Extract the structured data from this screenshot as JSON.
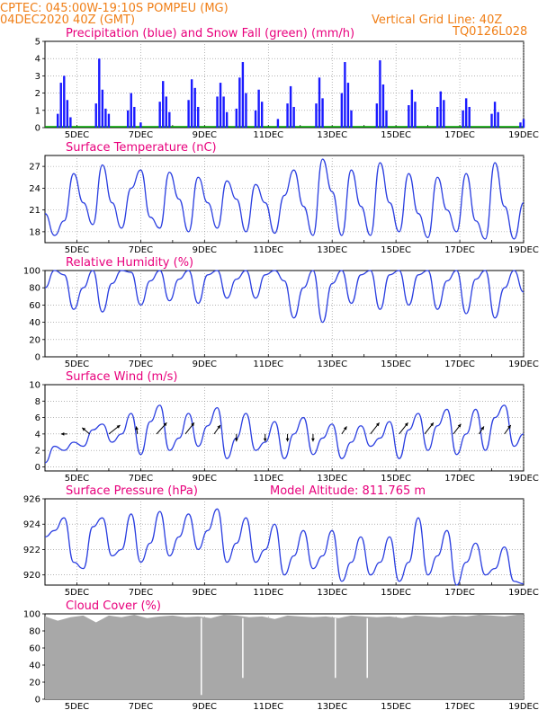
{
  "header": {
    "line1": "CPTEC:   045:00W-19:10S   POMPEU (MG)",
    "line2": "04DEC2020 40Z (GMT)",
    "right1": "Vertical Grid Line: 40Z",
    "right2": "TQ0126L028"
  },
  "x_axis": {
    "tick_labels": [
      "5DEC",
      "7DEC",
      "9DEC",
      "11DEC",
      "13DEC",
      "15DEC",
      "17DEC",
      "19DEC"
    ],
    "tick_days": [
      5,
      7,
      9,
      11,
      13,
      15,
      17,
      19
    ],
    "start_day": 4.0,
    "end_day": 19.0
  },
  "chart_data": [
    {
      "id": "precip",
      "type": "bar",
      "title": "Precipitation (blue) and Snow Fall (green) (mm/h)",
      "ylim": [
        0,
        5
      ],
      "yticks": [
        0,
        1,
        2,
        3,
        4,
        5
      ],
      "color": "#1a1aff",
      "snow_color": "#00aa00",
      "series": [
        {
          "x": 4.4,
          "y": 0.8
        },
        {
          "x": 4.5,
          "y": 2.6
        },
        {
          "x": 4.6,
          "y": 3.0
        },
        {
          "x": 4.7,
          "y": 1.6
        },
        {
          "x": 4.8,
          "y": 0.6
        },
        {
          "x": 5.6,
          "y": 1.4
        },
        {
          "x": 5.7,
          "y": 4.0
        },
        {
          "x": 5.8,
          "y": 2.2
        },
        {
          "x": 5.9,
          "y": 1.1
        },
        {
          "x": 6.0,
          "y": 0.8
        },
        {
          "x": 6.6,
          "y": 1.0
        },
        {
          "x": 6.7,
          "y": 2.0
        },
        {
          "x": 6.8,
          "y": 1.2
        },
        {
          "x": 7.0,
          "y": 0.3
        },
        {
          "x": 7.6,
          "y": 1.5
        },
        {
          "x": 7.7,
          "y": 2.7
        },
        {
          "x": 7.8,
          "y": 1.8
        },
        {
          "x": 7.9,
          "y": 0.9
        },
        {
          "x": 8.5,
          "y": 1.6
        },
        {
          "x": 8.6,
          "y": 2.8
        },
        {
          "x": 8.7,
          "y": 2.3
        },
        {
          "x": 8.8,
          "y": 1.2
        },
        {
          "x": 9.4,
          "y": 1.8
        },
        {
          "x": 9.5,
          "y": 2.6
        },
        {
          "x": 9.6,
          "y": 1.8
        },
        {
          "x": 9.7,
          "y": 0.9
        },
        {
          "x": 10.0,
          "y": 1.1
        },
        {
          "x": 10.1,
          "y": 2.9
        },
        {
          "x": 10.2,
          "y": 3.8
        },
        {
          "x": 10.3,
          "y": 2.0
        },
        {
          "x": 10.6,
          "y": 1.0
        },
        {
          "x": 10.7,
          "y": 2.2
        },
        {
          "x": 10.8,
          "y": 1.5
        },
        {
          "x": 11.3,
          "y": 0.5
        },
        {
          "x": 11.6,
          "y": 1.4
        },
        {
          "x": 11.7,
          "y": 2.4
        },
        {
          "x": 11.8,
          "y": 1.2
        },
        {
          "x": 12.5,
          "y": 1.4
        },
        {
          "x": 12.6,
          "y": 2.9
        },
        {
          "x": 12.7,
          "y": 1.7
        },
        {
          "x": 13.3,
          "y": 2.0
        },
        {
          "x": 13.4,
          "y": 3.8
        },
        {
          "x": 13.5,
          "y": 2.6
        },
        {
          "x": 13.6,
          "y": 1.0
        },
        {
          "x": 14.4,
          "y": 1.4
        },
        {
          "x": 14.5,
          "y": 3.9
        },
        {
          "x": 14.6,
          "y": 2.5
        },
        {
          "x": 14.7,
          "y": 1.0
        },
        {
          "x": 15.4,
          "y": 1.3
        },
        {
          "x": 15.5,
          "y": 2.2
        },
        {
          "x": 15.6,
          "y": 1.5
        },
        {
          "x": 16.3,
          "y": 1.2
        },
        {
          "x": 16.4,
          "y": 2.1
        },
        {
          "x": 16.5,
          "y": 1.6
        },
        {
          "x": 17.1,
          "y": 1.0
        },
        {
          "x": 17.2,
          "y": 1.7
        },
        {
          "x": 17.3,
          "y": 1.2
        },
        {
          "x": 18.0,
          "y": 0.8
        },
        {
          "x": 18.1,
          "y": 1.5
        },
        {
          "x": 18.2,
          "y": 0.9
        },
        {
          "x": 18.9,
          "y": 0.3
        },
        {
          "x": 19.0,
          "y": 0.5
        }
      ]
    },
    {
      "id": "temp",
      "type": "line",
      "title": "Surface Temperature (nC)",
      "ylim": [
        16.5,
        28.5
      ],
      "yticks": [
        18,
        21,
        24,
        27
      ],
      "color": "#2b3fe0",
      "x": [
        4.0,
        4.3,
        4.6,
        4.9,
        5.2,
        5.5,
        5.8,
        6.1,
        6.4,
        6.7,
        7.0,
        7.3,
        7.6,
        7.9,
        8.2,
        8.5,
        8.8,
        9.1,
        9.4,
        9.7,
        10.0,
        10.3,
        10.6,
        10.9,
        11.2,
        11.5,
        11.8,
        12.1,
        12.4,
        12.7,
        13.0,
        13.3,
        13.6,
        13.9,
        14.2,
        14.5,
        14.8,
        15.1,
        15.4,
        15.7,
        16.0,
        16.3,
        16.6,
        16.9,
        17.2,
        17.5,
        17.8,
        18.1,
        18.4,
        18.7,
        19.0
      ],
      "y": [
        20.5,
        17.5,
        19.5,
        26.0,
        22.0,
        19.0,
        27.2,
        22.0,
        18.5,
        24.0,
        26.5,
        20.0,
        18.5,
        26.2,
        22.5,
        18.0,
        25.5,
        22.0,
        18.5,
        25.0,
        22.5,
        18.0,
        24.5,
        22.0,
        17.8,
        23.0,
        26.5,
        21.5,
        17.5,
        28.0,
        23.5,
        17.5,
        26.5,
        21.5,
        17.5,
        27.5,
        22.0,
        18.0,
        26.0,
        20.5,
        17.2,
        25.5,
        21.0,
        18.0,
        26.0,
        19.5,
        17.0,
        27.5,
        21.5,
        17.0,
        22.0
      ]
    },
    {
      "id": "rh",
      "type": "line",
      "title": "Relative Humidity (%)",
      "ylim": [
        0,
        100
      ],
      "yticks": [
        0,
        20,
        40,
        60,
        80,
        100
      ],
      "color": "#2b3fe0",
      "x": [
        4.0,
        4.3,
        4.6,
        4.9,
        5.2,
        5.5,
        5.8,
        6.1,
        6.4,
        6.7,
        7.0,
        7.3,
        7.6,
        7.9,
        8.2,
        8.5,
        8.8,
        9.1,
        9.4,
        9.7,
        10.0,
        10.3,
        10.6,
        10.9,
        11.2,
        11.5,
        11.8,
        12.1,
        12.4,
        12.7,
        13.0,
        13.3,
        13.6,
        13.9,
        14.2,
        14.5,
        14.8,
        15.1,
        15.4,
        15.7,
        16.0,
        16.3,
        16.6,
        16.9,
        17.2,
        17.5,
        17.8,
        18.1,
        18.4,
        18.7,
        19.0
      ],
      "y": [
        80,
        100,
        95,
        55,
        80,
        100,
        52,
        85,
        100,
        98,
        60,
        88,
        100,
        65,
        90,
        100,
        62,
        95,
        100,
        68,
        90,
        100,
        68,
        95,
        100,
        88,
        45,
        80,
        100,
        40,
        85,
        100,
        62,
        95,
        100,
        55,
        95,
        100,
        60,
        95,
        100,
        55,
        88,
        100,
        50,
        90,
        100,
        45,
        80,
        100,
        75
      ]
    },
    {
      "id": "wind",
      "type": "line",
      "title": "Surface Wind (m/s)",
      "ylim": [
        -0.5,
        10
      ],
      "yticks": [
        0,
        2,
        4,
        6,
        8,
        10
      ],
      "color": "#2b3fe0",
      "x": [
        4.0,
        4.3,
        4.6,
        4.9,
        5.2,
        5.5,
        5.8,
        6.1,
        6.4,
        6.7,
        7.0,
        7.3,
        7.6,
        7.9,
        8.2,
        8.5,
        8.8,
        9.1,
        9.4,
        9.7,
        10.0,
        10.3,
        10.6,
        10.9,
        11.2,
        11.5,
        11.8,
        12.1,
        12.4,
        12.7,
        13.0,
        13.3,
        13.6,
        13.9,
        14.2,
        14.5,
        14.8,
        15.1,
        15.4,
        15.7,
        16.0,
        16.3,
        16.6,
        16.9,
        17.2,
        17.5,
        17.8,
        18.1,
        18.4,
        18.7,
        19.0
      ],
      "y": [
        0.5,
        2.5,
        2.0,
        3.0,
        2.5,
        4.5,
        5.2,
        3.0,
        4.0,
        6.5,
        1.5,
        5.5,
        7.5,
        2.0,
        3.5,
        6.5,
        2.5,
        5.0,
        7.2,
        1.0,
        3.5,
        6.5,
        2.0,
        3.0,
        5.5,
        1.0,
        4.0,
        6.0,
        1.5,
        3.5,
        5.2,
        1.0,
        3.0,
        5.0,
        2.5,
        3.5,
        5.5,
        1.0,
        4.5,
        6.5,
        2.0,
        5.0,
        7.0,
        1.5,
        4.0,
        7.0,
        2.0,
        6.0,
        7.5,
        2.5,
        4.0
      ],
      "arrows": [
        {
          "x": 4.7,
          "dx": -0.25,
          "dy": 0.0
        },
        {
          "x": 5.4,
          "dx": -0.3,
          "dy": 0.25
        },
        {
          "x": 6.0,
          "dx": 0.45,
          "dy": 0.35
        },
        {
          "x": 6.9,
          "dx": -0.05,
          "dy": 0.3
        },
        {
          "x": 7.5,
          "dx": 0.4,
          "dy": 0.45
        },
        {
          "x": 8.4,
          "dx": 0.35,
          "dy": 0.45
        },
        {
          "x": 9.3,
          "dx": 0.25,
          "dy": 0.35
        },
        {
          "x": 10.0,
          "dx": 0.0,
          "dy": -0.3
        },
        {
          "x": 10.9,
          "dx": 0.0,
          "dy": -0.3
        },
        {
          "x": 11.6,
          "dx": 0.0,
          "dy": -0.3
        },
        {
          "x": 12.4,
          "dx": 0.0,
          "dy": -0.3
        },
        {
          "x": 13.3,
          "dx": 0.2,
          "dy": 0.3
        },
        {
          "x": 14.2,
          "dx": 0.35,
          "dy": 0.45
        },
        {
          "x": 15.1,
          "dx": 0.35,
          "dy": 0.45
        },
        {
          "x": 15.9,
          "dx": 0.35,
          "dy": 0.45
        },
        {
          "x": 16.8,
          "dx": 0.3,
          "dy": 0.4
        },
        {
          "x": 17.6,
          "dx": 0.2,
          "dy": 0.3
        },
        {
          "x": 18.4,
          "dx": 0.25,
          "dy": 0.35
        }
      ]
    },
    {
      "id": "pressure",
      "type": "line",
      "title": "Surface Pressure (hPa)",
      "annotation": "Model Altitude: 811.765 m",
      "ylim": [
        919.2,
        926.0
      ],
      "yticks": [
        920,
        922,
        924,
        926
      ],
      "color": "#2b3fe0",
      "x": [
        4.0,
        4.3,
        4.6,
        4.9,
        5.2,
        5.5,
        5.8,
        6.1,
        6.4,
        6.7,
        7.0,
        7.3,
        7.6,
        7.9,
        8.2,
        8.5,
        8.8,
        9.1,
        9.4,
        9.7,
        10.0,
        10.3,
        10.6,
        10.9,
        11.2,
        11.5,
        11.8,
        12.1,
        12.4,
        12.7,
        13.0,
        13.3,
        13.6,
        13.9,
        14.2,
        14.5,
        14.8,
        15.1,
        15.4,
        15.7,
        16.0,
        16.3,
        16.6,
        16.9,
        17.2,
        17.5,
        17.8,
        18.1,
        18.4,
        18.7,
        19.0
      ],
      "y": [
        923.0,
        923.5,
        924.5,
        921.0,
        920.5,
        923.8,
        924.5,
        921.5,
        922.0,
        924.8,
        921.0,
        922.5,
        925.0,
        921.5,
        923.0,
        924.8,
        922.0,
        923.5,
        925.2,
        921.0,
        922.5,
        924.5,
        921.0,
        922.0,
        924.0,
        920.0,
        921.5,
        923.5,
        920.5,
        921.5,
        923.5,
        919.5,
        921.0,
        923.0,
        920.0,
        921.0,
        923.0,
        919.5,
        921.0,
        924.5,
        920.0,
        921.5,
        923.5,
        919.2,
        921.0,
        922.5,
        920.0,
        920.5,
        922.2,
        919.5,
        919.3
      ]
    },
    {
      "id": "cloud",
      "type": "area",
      "title": "Cloud Cover (%)",
      "ylim": [
        0,
        100
      ],
      "yticks": [
        0,
        20,
        40,
        60,
        80,
        100
      ],
      "color": "#a8a8a8",
      "x": [
        4.0,
        4.4,
        4.8,
        5.2,
        5.6,
        6.0,
        6.4,
        6.8,
        7.2,
        7.6,
        8.0,
        8.4,
        8.8,
        9.2,
        9.6,
        10.0,
        10.4,
        10.8,
        11.2,
        11.6,
        12.0,
        12.4,
        12.8,
        13.2,
        13.6,
        14.0,
        14.4,
        14.8,
        15.2,
        15.6,
        16.0,
        16.4,
        16.8,
        17.2,
        17.6,
        18.0,
        18.4,
        18.8,
        19.0
      ],
      "y": [
        97,
        92,
        96,
        98,
        90,
        98,
        96,
        99,
        95,
        97,
        98,
        96,
        97,
        95,
        99,
        98,
        96,
        97,
        94,
        98,
        97,
        96,
        97,
        95,
        98,
        97,
        96,
        97,
        95,
        98,
        97,
        96,
        98,
        97,
        99,
        98,
        97,
        99,
        99
      ]
    }
  ]
}
